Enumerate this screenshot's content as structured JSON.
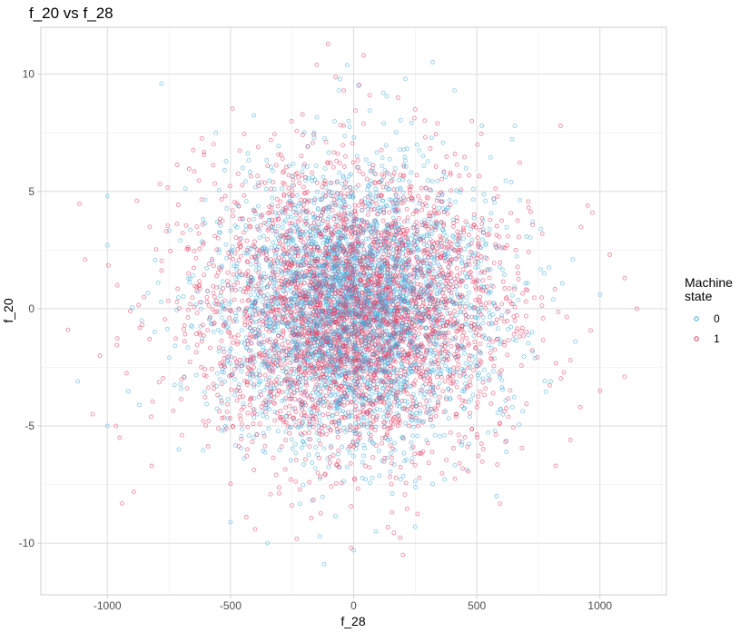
{
  "chart_data": {
    "type": "scatter",
    "title": "f_20 vs f_28",
    "xlabel": "f_28",
    "ylabel": "f_20",
    "xlim": [
      -1270,
      1270
    ],
    "ylim": [
      -12.2,
      12.0
    ],
    "x_ticks": [
      -1000,
      -500,
      0,
      500,
      1000
    ],
    "x_tick_labels": [
      "-1000",
      "-500",
      "0",
      "500",
      "1000"
    ],
    "y_ticks": [
      -10,
      -5,
      0,
      5,
      10
    ],
    "y_tick_labels": [
      "-10",
      "-5",
      "0",
      "5",
      "10"
    ],
    "grid": true,
    "legend": {
      "title_lines": [
        "Machine",
        "state"
      ],
      "placement": "right",
      "entries": [
        "0",
        "1"
      ]
    },
    "series": [
      {
        "name": "0",
        "color": "#3ea9dc",
        "distribution": {
          "x_mean": 0,
          "x_sd": 270,
          "y_mean": 0,
          "y_sd": 2.85
        },
        "sample_points": [
          [
            -780,
            9.6
          ],
          [
            -560,
            7.5
          ],
          [
            -450,
            6.0
          ],
          [
            -1000,
            4.8
          ],
          [
            -1000,
            2.7
          ],
          [
            -1120,
            -3.1
          ],
          [
            -1000,
            -5.0
          ],
          [
            -870,
            -4.1
          ],
          [
            -710,
            -6.0
          ],
          [
            -500,
            -9.1
          ],
          [
            -350,
            -10.0
          ],
          [
            -120,
            -10.9
          ],
          [
            0,
            -10.3
          ],
          [
            90,
            -9.5
          ],
          [
            250,
            -9.3
          ],
          [
            -60,
            9.3
          ],
          [
            20,
            9.5
          ],
          [
            120,
            9.2
          ],
          [
            210,
            9.8
          ],
          [
            410,
            9.3
          ],
          [
            520,
            7.8
          ],
          [
            640,
            5.4
          ],
          [
            760,
            3.4
          ],
          [
            890,
            2.1
          ],
          [
            1000,
            0.6
          ],
          [
            900,
            -1.4
          ],
          [
            800,
            -3.1
          ],
          [
            620,
            -6.1
          ],
          [
            580,
            -8.0
          ],
          [
            -860,
            -0.5
          ]
        ]
      },
      {
        "name": "1",
        "color": "#e8365d",
        "distribution": {
          "x_mean": 0,
          "x_sd": 300,
          "y_mean": 0,
          "y_sd": 3.0
        },
        "sample_points": [
          [
            -1160,
            -0.9
          ],
          [
            -1090,
            2.1
          ],
          [
            -1060,
            -4.5
          ],
          [
            -1030,
            -2.0
          ],
          [
            -960,
            1.0
          ],
          [
            -950,
            -5.5
          ],
          [
            -940,
            -8.3
          ],
          [
            -880,
            4.6
          ],
          [
            -820,
            -6.7
          ],
          [
            -760,
            3.3
          ],
          [
            -150,
            10.4
          ],
          [
            -40,
            9.3
          ],
          [
            40,
            10.8
          ],
          [
            180,
            9.0
          ],
          [
            250,
            8.5
          ],
          [
            340,
            7.9
          ],
          [
            480,
            8.0
          ],
          [
            840,
            7.8
          ],
          [
            950,
            4.4
          ],
          [
            1040,
            2.3
          ],
          [
            1100,
            1.3
          ],
          [
            1150,
            0.0
          ],
          [
            1100,
            -2.9
          ],
          [
            1000,
            -3.5
          ],
          [
            920,
            -4.2
          ],
          [
            880,
            -5.6
          ],
          [
            820,
            -6.7
          ],
          [
            200,
            -10.5
          ],
          [
            -10,
            -10.2
          ],
          [
            -400,
            -9.4
          ]
        ]
      }
    ]
  }
}
